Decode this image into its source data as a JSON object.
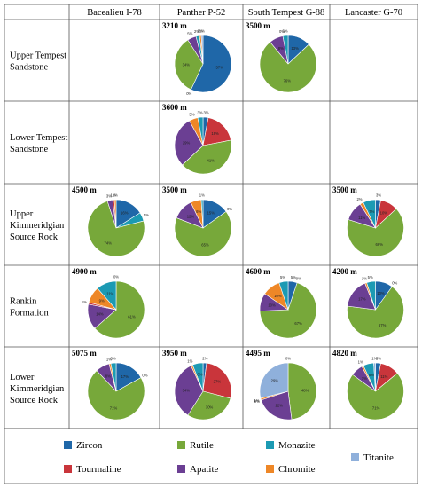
{
  "header": {
    "columns": [
      "Bacealieu I-78",
      "Panther P-52",
      "South Tempest G-88",
      "Lancaster G-70"
    ]
  },
  "rows": [
    {
      "label_lines": [
        "Upper Tempest",
        "Sandstone"
      ]
    },
    {
      "label_lines": [
        "Lower Tempest",
        "Sandstone"
      ]
    },
    {
      "label_lines": [
        "Upper",
        "Kimmeridgian",
        "Source Rock"
      ]
    },
    {
      "label_lines": [
        "Rankin",
        "Formation"
      ]
    },
    {
      "label_lines": [
        "Lower",
        "Kimmeridgian",
        "Source Rock"
      ]
    }
  ],
  "colors": {
    "Zircon": "#1f67a8",
    "Tourmaline": "#c9353b",
    "Rutile": "#77a83a",
    "Apatite": "#6b3f93",
    "Monazite": "#1c9ab3",
    "Chromite": "#ee8727",
    "Titanite": "#8fb0db"
  },
  "legend": [
    {
      "name": "Zircon"
    },
    {
      "name": "Rutile"
    },
    {
      "name": "Monazite"
    },
    {
      "name": "Tourmaline"
    },
    {
      "name": "Apatite"
    },
    {
      "name": "Chromite"
    },
    {
      "name": "Titanite"
    }
  ],
  "chart_data": {
    "type": "pie",
    "categories": [
      "Zircon",
      "Tourmaline",
      "Rutile",
      "Apatite",
      "Monazite",
      "Chromite",
      "Titanite"
    ],
    "pies": [
      {
        "row": 0,
        "col": 1,
        "depth": "3210 m",
        "slices": [
          {
            "name": "Zircon",
            "value": 57,
            "label": "57%"
          },
          {
            "name": "Tourmaline",
            "value": 0,
            "label": "0%"
          },
          {
            "name": "Rutile",
            "value": 34,
            "label": "34%"
          },
          {
            "name": "Apatite",
            "value": 5,
            "label": "5%"
          },
          {
            "name": "Monazite",
            "value": 2,
            "label": "2%"
          },
          {
            "name": "Chromite",
            "value": 1,
            "label": "1%"
          },
          {
            "name": "Titanite",
            "value": 1,
            "label": "1%"
          }
        ]
      },
      {
        "row": 0,
        "col": 2,
        "depth": "3500 m",
        "slices": [
          {
            "name": "Zircon",
            "value": 13,
            "label": "13%"
          },
          {
            "name": "Rutile",
            "value": 76,
            "label": "76%"
          },
          {
            "name": "Apatite",
            "value": 8,
            "label": "8%"
          },
          {
            "name": "Chromite",
            "value": 0,
            "label": "0%"
          },
          {
            "name": "Monazite",
            "value": 3,
            "label": "3%"
          }
        ]
      },
      {
        "row": 1,
        "col": 1,
        "depth": "3600 m",
        "slices": [
          {
            "name": "Zircon",
            "value": 3,
            "label": "3%"
          },
          {
            "name": "Tourmaline",
            "value": 19,
            "label": "19%"
          },
          {
            "name": "Rutile",
            "value": 41,
            "label": "41%"
          },
          {
            "name": "Apatite",
            "value": 29,
            "label": "29%"
          },
          {
            "name": "Chromite",
            "value": 5,
            "label": "5%"
          },
          {
            "name": "Monazite",
            "value": 3,
            "label": "3%"
          }
        ]
      },
      {
        "row": 2,
        "col": 0,
        "depth": "4500 m",
        "slices": [
          {
            "name": "Zircon",
            "value": 16,
            "label": "16%"
          },
          {
            "name": "Monazite",
            "value": 5,
            "label": "5%"
          },
          {
            "name": "Rutile",
            "value": 74,
            "label": "74%"
          },
          {
            "name": "Apatite",
            "value": 3,
            "label": "3%"
          },
          {
            "name": "Tourmaline",
            "value": 1,
            "label": "1%"
          },
          {
            "name": "Chromite",
            "value": 1,
            "label": "1%"
          }
        ]
      },
      {
        "row": 2,
        "col": 1,
        "depth": "3500 m",
        "slices": [
          {
            "name": "Zircon",
            "value": 15,
            "label": "15%"
          },
          {
            "name": "Tourmaline",
            "value": 0,
            "label": "0%"
          },
          {
            "name": "Rutile",
            "value": 65,
            "label": "65%"
          },
          {
            "name": "Apatite",
            "value": 12,
            "label": "12%"
          },
          {
            "name": "Chromite",
            "value": 6,
            "label": "6%"
          },
          {
            "name": "Monazite",
            "value": 1,
            "label": "1%"
          }
        ]
      },
      {
        "row": 2,
        "col": 3,
        "depth": "3500 m",
        "slices": [
          {
            "name": "Zircon",
            "value": 3,
            "label": "3%"
          },
          {
            "name": "Tourmaline",
            "value": 10,
            "label": "10%"
          },
          {
            "name": "Rutile",
            "value": 66,
            "label": "66%"
          },
          {
            "name": "Apatite",
            "value": 11,
            "label": "11%"
          },
          {
            "name": "Chromite",
            "value": 2,
            "label": "2%"
          },
          {
            "name": "Monazite",
            "value": 7,
            "label": "7%"
          }
        ]
      },
      {
        "row": 3,
        "col": 0,
        "depth": "4900 m",
        "slices": [
          {
            "name": "Zircon",
            "value": 0,
            "label": "0%"
          },
          {
            "name": "Rutile",
            "value": 61,
            "label": "61%"
          },
          {
            "name": "Apatite",
            "value": 14,
            "label": "14%"
          },
          {
            "name": "Tourmaline",
            "value": 1,
            "label": "1%"
          },
          {
            "name": "Chromite",
            "value": 9,
            "label": "9%"
          },
          {
            "name": "Monazite",
            "value": 11,
            "label": "11%"
          }
        ]
      },
      {
        "row": 3,
        "col": 2,
        "depth": "4600 m",
        "slices": [
          {
            "name": "Zircon",
            "value": 5,
            "label": "5%"
          },
          {
            "name": "Tourmaline",
            "value": 0,
            "label": "0%"
          },
          {
            "name": "Rutile",
            "value": 67,
            "label": "67%"
          },
          {
            "name": "Apatite",
            "value": 10,
            "label": "10%"
          },
          {
            "name": "Chromite",
            "value": 10,
            "label": "10%"
          },
          {
            "name": "Monazite",
            "value": 5,
            "label": "5%"
          }
        ]
      },
      {
        "row": 3,
        "col": 3,
        "depth": "4200 m",
        "slices": [
          {
            "name": "Zircon",
            "value": 10,
            "label": "10%"
          },
          {
            "name": "Tourmaline",
            "value": 0,
            "label": "0%"
          },
          {
            "name": "Rutile",
            "value": 67,
            "label": "67%"
          },
          {
            "name": "Apatite",
            "value": 17,
            "label": "17%"
          },
          {
            "name": "Chromite",
            "value": 1,
            "label": "1%"
          },
          {
            "name": "Monazite",
            "value": 5,
            "label": "5%"
          }
        ]
      },
      {
        "row": 4,
        "col": 0,
        "depth": "5075 m",
        "slices": [
          {
            "name": "Zircon",
            "value": 17,
            "label": "17%"
          },
          {
            "name": "Tourmaline",
            "value": 0,
            "label": "0%"
          },
          {
            "name": "Rutile",
            "value": 71,
            "label": "71%"
          },
          {
            "name": "Apatite",
            "value": 8,
            "label": "8%"
          },
          {
            "name": "Chromite",
            "value": 1,
            "label": "1%"
          },
          {
            "name": "Monazite",
            "value": 3,
            "label": "3%"
          }
        ]
      },
      {
        "row": 4,
        "col": 1,
        "depth": "3950 m",
        "slices": [
          {
            "name": "Zircon",
            "value": 2,
            "label": "2%"
          },
          {
            "name": "Tourmaline",
            "value": 27,
            "label": "27%"
          },
          {
            "name": "Rutile",
            "value": 30,
            "label": "30%"
          },
          {
            "name": "Apatite",
            "value": 34,
            "label": "34%"
          },
          {
            "name": "Chromite",
            "value": 1,
            "label": "1%"
          },
          {
            "name": "Monazite",
            "value": 6,
            "label": "6%"
          }
        ]
      },
      {
        "row": 4,
        "col": 2,
        "depth": "4495 m",
        "slices": [
          {
            "name": "Zircon",
            "value": 0,
            "label": "0%"
          },
          {
            "name": "Rutile",
            "value": 48,
            "label": "48%"
          },
          {
            "name": "Apatite",
            "value": 22,
            "label": "22%"
          },
          {
            "name": "Tourmaline",
            "value": 0,
            "label": "0%"
          },
          {
            "name": "Chromite",
            "value": 1,
            "label": "1%"
          },
          {
            "name": "Titanite",
            "value": 29,
            "label": "29%"
          }
        ]
      },
      {
        "row": 4,
        "col": 3,
        "depth": "4820 m",
        "slices": [
          {
            "name": "Zircon",
            "value": 3,
            "label": "3%"
          },
          {
            "name": "Tourmaline",
            "value": 11,
            "label": "11%"
          },
          {
            "name": "Rutile",
            "value": 71,
            "label": "71%"
          },
          {
            "name": "Apatite",
            "value": 7,
            "label": "7%"
          },
          {
            "name": "Chromite",
            "value": 1,
            "label": "1%"
          },
          {
            "name": "Monazite",
            "value": 6,
            "label": "6%"
          },
          {
            "name": "Titanite",
            "value": 1,
            "label": "1%"
          }
        ]
      }
    ]
  }
}
